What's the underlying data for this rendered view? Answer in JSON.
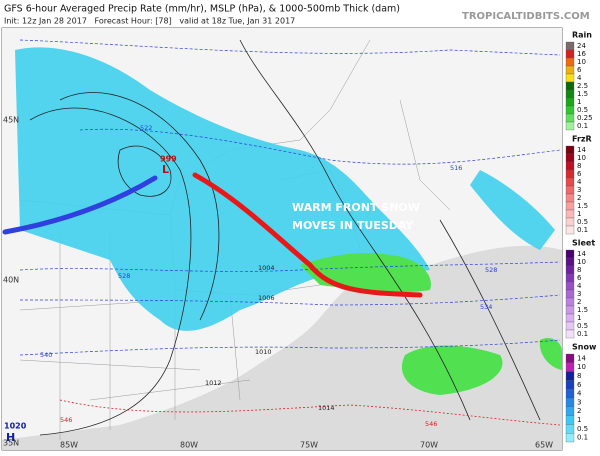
{
  "header": {
    "title": "GFS 6-hour Averaged Precip Rate (mm/hr), MSLP (hPa), & 1000-500mb Thick (dam)",
    "subtitle": "Init: 12z Jan 28 2017   Forecast Hour: [78]   valid at 18z Tue, Jan 31 2017",
    "credit": "TROPICALTIDBITS.COM"
  },
  "map": {
    "annotation": [
      "WARM FRONT SNOW",
      "MOVES IN TUESDAY"
    ],
    "low": {
      "pressure": "999",
      "symbol": "L"
    },
    "high": {
      "pressure": "1020",
      "symbol": "H"
    },
    "lat_labels": [
      "45N",
      "40N",
      "35N"
    ],
    "lon_labels": [
      "85W",
      "80W",
      "75W",
      "70W",
      "65W"
    ],
    "contour_labels": [
      "522",
      "516",
      "528",
      "534",
      "540",
      "546",
      "546",
      "528",
      "1006",
      "1004",
      "1010",
      "1012",
      "1014"
    ]
  },
  "legend": [
    {
      "name": "Rain",
      "labels": [
        "24",
        "16",
        "10",
        "6",
        "4",
        "2.5",
        "1.5",
        "1",
        "0.5",
        "0.25",
        "0.1"
      ],
      "colors": [
        "#7a6a6a",
        "#d62020",
        "#f06a10",
        "#f0b010",
        "#f8e018",
        "#0a6a0a",
        "#108a10",
        "#18a818",
        "#30c830",
        "#60e060",
        "#a0f0a0"
      ]
    },
    {
      "name": "FrzR",
      "labels": [
        "14",
        "10",
        "8",
        "6",
        "4",
        "3",
        "2",
        "1.5",
        "1",
        "0.5",
        "0.1"
      ],
      "colors": [
        "#7a0010",
        "#a00018",
        "#c01020",
        "#d82830",
        "#e84848",
        "#f06868",
        "#f48888",
        "#f8a0a0",
        "#fbb8b8",
        "#fcd0d0",
        "#fee4e4"
      ]
    },
    {
      "name": "Sleet",
      "labels": [
        "14",
        "10",
        "8",
        "6",
        "4",
        "3",
        "2",
        "1.5",
        "1",
        "0.5",
        "0.1"
      ],
      "colors": [
        "#4a0070",
        "#5c1088",
        "#7020a0",
        "#8438b8",
        "#9850c8",
        "#aa68d4",
        "#bc80e0",
        "#cc98e8",
        "#dab0f0",
        "#e6c8f6",
        "#f2e0fa"
      ]
    },
    {
      "name": "Snow",
      "labels": [
        "14",
        "10",
        "8",
        "6",
        "4",
        "3",
        "2",
        "1",
        "0.5",
        "0.1"
      ],
      "colors": [
        "#8a0a80",
        "#c020b0",
        "#1020a0",
        "#1840c0",
        "#2060d8",
        "#2888e8",
        "#30a8f0",
        "#40c8f4",
        "#60dcf8",
        "#90ecfa"
      ]
    }
  ]
}
